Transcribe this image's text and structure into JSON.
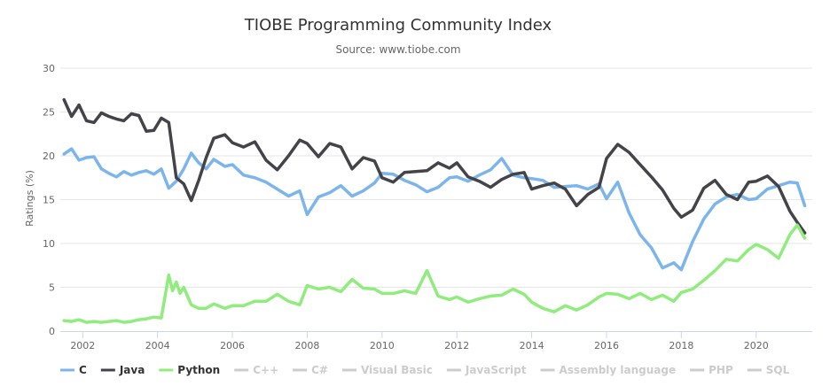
{
  "chart_data": {
    "type": "line",
    "title": "TIOBE Programming Community Index",
    "subtitle": "Source: www.tiobe.com",
    "ylabel": "Ratings (%)",
    "xlabel": "",
    "xlim": [
      2001.4,
      2021.5
    ],
    "ylim": [
      0,
      30
    ],
    "yticks": [
      0,
      5,
      10,
      15,
      20,
      25,
      30
    ],
    "xticks": [
      2002,
      2004,
      2006,
      2008,
      2010,
      2012,
      2014,
      2016,
      2018,
      2020
    ],
    "grid": true,
    "legend_position": "bottom-left",
    "series": [
      {
        "name": "C",
        "color": "#7cb5ec",
        "visible": true,
        "x": [
          2001.5,
          2001.7,
          2001.9,
          2002.1,
          2002.3,
          2002.5,
          2002.7,
          2002.9,
          2003.1,
          2003.3,
          2003.5,
          2003.7,
          2003.9,
          2004.1,
          2004.3,
          2004.5,
          2004.7,
          2004.9,
          2005.1,
          2005.3,
          2005.5,
          2005.8,
          2006.0,
          2006.3,
          2006.6,
          2006.9,
          2007.2,
          2007.5,
          2007.8,
          2008.0,
          2008.3,
          2008.6,
          2008.9,
          2009.2,
          2009.5,
          2009.8,
          2010.0,
          2010.3,
          2010.6,
          2010.9,
          2011.2,
          2011.5,
          2011.8,
          2012.0,
          2012.3,
          2012.6,
          2012.9,
          2013.2,
          2013.5,
          2013.8,
          2014.0,
          2014.3,
          2014.6,
          2014.9,
          2015.2,
          2015.5,
          2015.8,
          2016.0,
          2016.3,
          2016.6,
          2016.9,
          2017.2,
          2017.5,
          2017.8,
          2018.0,
          2018.3,
          2018.6,
          2018.9,
          2019.2,
          2019.5,
          2019.8,
          2020.0,
          2020.3,
          2020.6,
          2020.9,
          2021.1,
          2021.3
        ],
        "values": [
          20.2,
          20.8,
          19.5,
          19.8,
          19.9,
          18.5,
          18.0,
          17.6,
          18.2,
          17.8,
          18.1,
          18.3,
          17.9,
          18.5,
          16.3,
          17.1,
          18.5,
          20.3,
          19.2,
          18.5,
          19.6,
          18.8,
          19.0,
          17.8,
          17.5,
          17.0,
          16.2,
          15.4,
          16.0,
          13.3,
          15.3,
          15.8,
          16.6,
          15.4,
          16.0,
          16.9,
          18.0,
          17.9,
          17.2,
          16.7,
          15.9,
          16.4,
          17.5,
          17.6,
          17.1,
          17.8,
          18.4,
          19.7,
          17.8,
          17.5,
          17.4,
          17.2,
          16.4,
          16.5,
          16.6,
          16.2,
          16.8,
          15.1,
          17.0,
          13.5,
          11.0,
          9.5,
          7.2,
          7.8,
          7.0,
          10.2,
          12.8,
          14.5,
          15.3,
          15.6,
          15.0,
          15.1,
          16.2,
          16.6,
          17.0,
          16.9,
          14.3
        ]
      },
      {
        "name": "Java",
        "color": "#434348",
        "visible": true,
        "x": [
          2001.5,
          2001.7,
          2001.9,
          2002.1,
          2002.3,
          2002.5,
          2002.7,
          2002.9,
          2003.1,
          2003.3,
          2003.5,
          2003.7,
          2003.9,
          2004.1,
          2004.3,
          2004.5,
          2004.7,
          2004.9,
          2005.1,
          2005.3,
          2005.5,
          2005.8,
          2006.0,
          2006.3,
          2006.6,
          2006.9,
          2007.2,
          2007.5,
          2007.8,
          2008.0,
          2008.3,
          2008.6,
          2008.9,
          2009.2,
          2009.5,
          2009.8,
          2010.0,
          2010.3,
          2010.6,
          2010.9,
          2011.2,
          2011.5,
          2011.8,
          2012.0,
          2012.3,
          2012.6,
          2012.9,
          2013.2,
          2013.5,
          2013.8,
          2014.0,
          2014.3,
          2014.6,
          2014.9,
          2015.2,
          2015.5,
          2015.8,
          2016.0,
          2016.3,
          2016.6,
          2016.9,
          2017.2,
          2017.5,
          2017.8,
          2018.0,
          2018.3,
          2018.6,
          2018.9,
          2019.2,
          2019.5,
          2019.8,
          2020.0,
          2020.3,
          2020.6,
          2020.9,
          2021.1,
          2021.3
        ],
        "values": [
          26.4,
          24.5,
          25.8,
          24.0,
          23.8,
          24.9,
          24.5,
          24.2,
          24.0,
          24.8,
          24.6,
          22.8,
          22.9,
          24.3,
          23.8,
          17.5,
          16.8,
          14.9,
          17.2,
          19.8,
          22.0,
          22.4,
          21.5,
          21.0,
          21.6,
          19.5,
          18.4,
          20.0,
          21.8,
          21.4,
          19.9,
          21.4,
          21.0,
          18.5,
          19.8,
          19.4,
          17.5,
          17.0,
          18.1,
          18.2,
          18.3,
          19.2,
          18.6,
          19.2,
          17.6,
          17.1,
          16.4,
          17.3,
          17.9,
          18.1,
          16.2,
          16.6,
          16.9,
          16.2,
          14.3,
          15.6,
          16.4,
          19.7,
          21.3,
          20.4,
          19.0,
          17.6,
          16.1,
          14.0,
          13.0,
          13.8,
          16.3,
          17.2,
          15.6,
          15.0,
          17.0,
          17.1,
          17.7,
          16.5,
          13.7,
          12.4,
          11.2
        ]
      },
      {
        "name": "Python",
        "color": "#90ed7d",
        "visible": true,
        "x": [
          2001.5,
          2001.7,
          2001.9,
          2002.1,
          2002.3,
          2002.5,
          2002.7,
          2002.9,
          2003.1,
          2003.3,
          2003.5,
          2003.7,
          2003.9,
          2004.1,
          2004.3,
          2004.4,
          2004.5,
          2004.6,
          2004.7,
          2004.9,
          2005.1,
          2005.3,
          2005.5,
          2005.8,
          2006.0,
          2006.3,
          2006.6,
          2006.9,
          2007.2,
          2007.5,
          2007.8,
          2008.0,
          2008.3,
          2008.6,
          2008.9,
          2009.2,
          2009.5,
          2009.8,
          2010.0,
          2010.3,
          2010.6,
          2010.9,
          2011.2,
          2011.5,
          2011.8,
          2012.0,
          2012.3,
          2012.6,
          2012.9,
          2013.2,
          2013.5,
          2013.8,
          2014.0,
          2014.3,
          2014.6,
          2014.9,
          2015.2,
          2015.5,
          2015.8,
          2016.0,
          2016.3,
          2016.6,
          2016.9,
          2017.2,
          2017.5,
          2017.8,
          2018.0,
          2018.3,
          2018.6,
          2018.9,
          2019.2,
          2019.5,
          2019.8,
          2020.0,
          2020.3,
          2020.6,
          2020.9,
          2021.1,
          2021.3
        ],
        "values": [
          1.2,
          1.1,
          1.3,
          1.0,
          1.1,
          1.0,
          1.1,
          1.2,
          1.0,
          1.1,
          1.3,
          1.4,
          1.6,
          1.5,
          6.4,
          4.6,
          5.6,
          4.3,
          5.0,
          3.0,
          2.6,
          2.6,
          3.1,
          2.6,
          2.9,
          2.9,
          3.4,
          3.4,
          4.2,
          3.4,
          3.0,
          5.2,
          4.8,
          5.0,
          4.5,
          5.9,
          4.9,
          4.8,
          4.3,
          4.3,
          4.6,
          4.3,
          6.9,
          4.0,
          3.6,
          3.9,
          3.3,
          3.7,
          4.0,
          4.1,
          4.8,
          4.2,
          3.3,
          2.6,
          2.2,
          2.9,
          2.4,
          3.0,
          3.9,
          4.3,
          4.2,
          3.7,
          4.3,
          3.6,
          4.1,
          3.4,
          4.4,
          4.8,
          5.8,
          6.9,
          8.2,
          8.0,
          9.3,
          9.9,
          9.3,
          8.3,
          11.0,
          12.1,
          10.6
        ]
      },
      {
        "name": "C++",
        "color": "#cccccc",
        "visible": false
      },
      {
        "name": "C#",
        "color": "#cccccc",
        "visible": false
      },
      {
        "name": "Visual Basic",
        "color": "#cccccc",
        "visible": false
      },
      {
        "name": "JavaScript",
        "color": "#cccccc",
        "visible": false
      },
      {
        "name": "Assembly language",
        "color": "#cccccc",
        "visible": false
      },
      {
        "name": "PHP",
        "color": "#cccccc",
        "visible": false
      },
      {
        "name": "SQL",
        "color": "#cccccc",
        "visible": false
      }
    ]
  }
}
